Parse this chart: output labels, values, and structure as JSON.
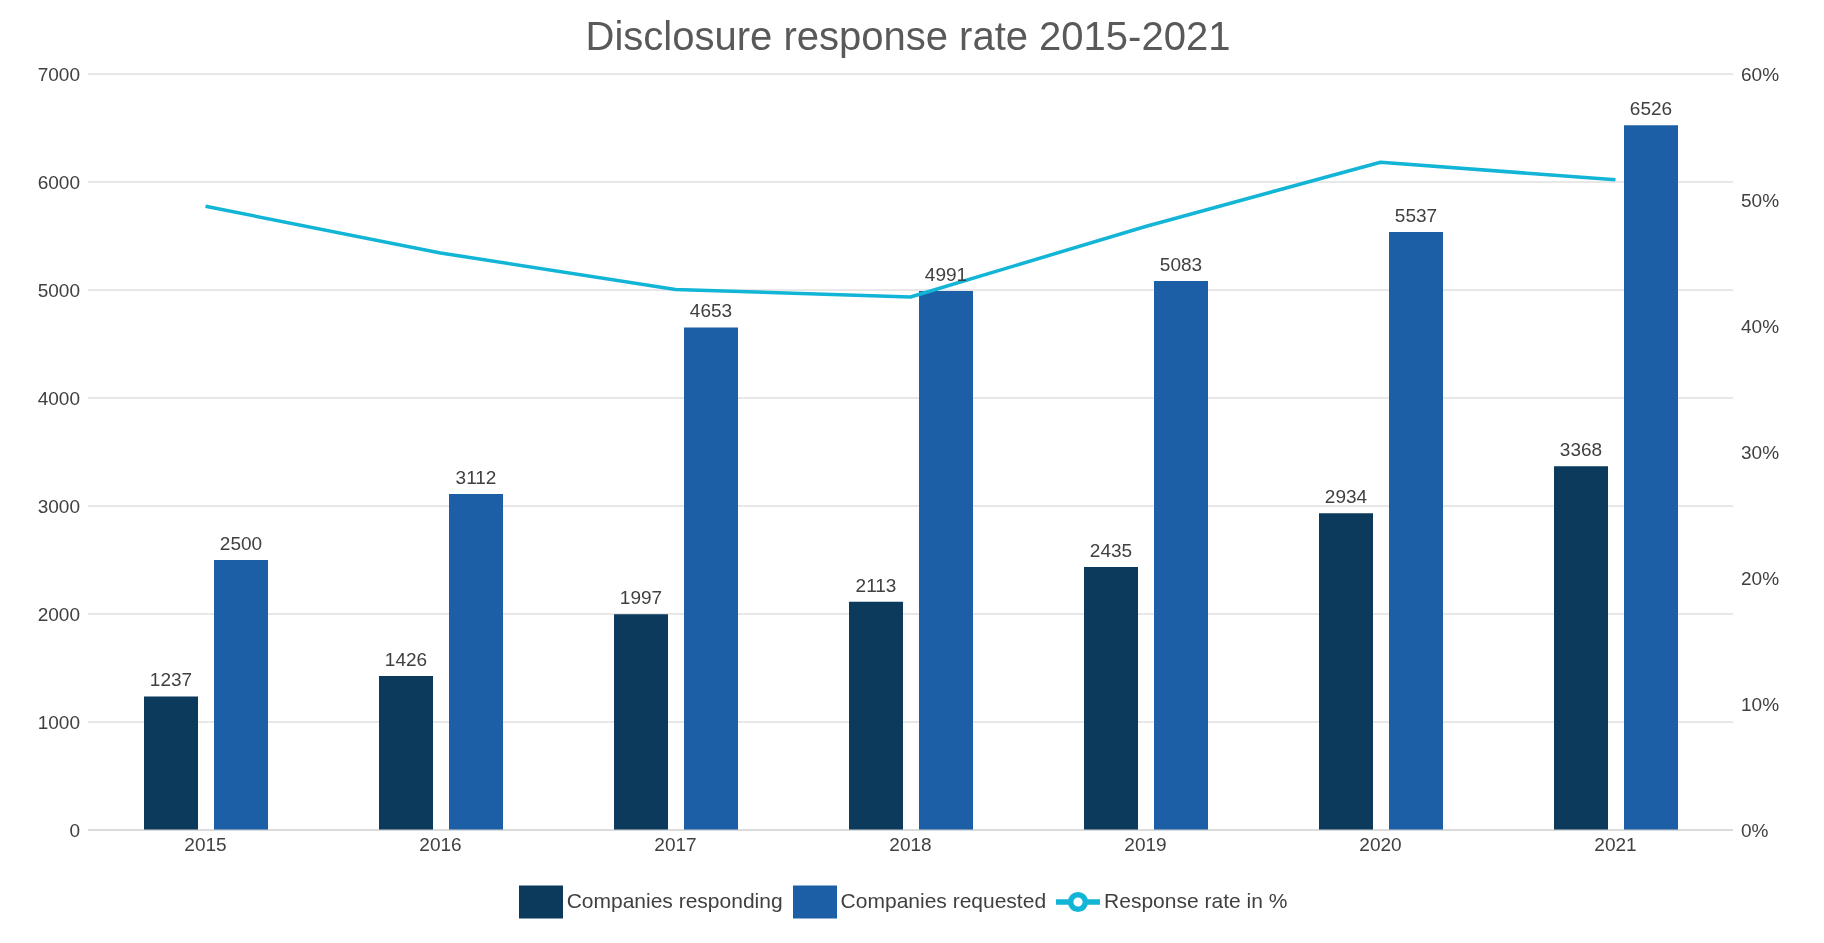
{
  "chart_data": {
    "type": "bar",
    "title": "Disclosure response rate 2015-2021",
    "categories": [
      "2015",
      "2016",
      "2017",
      "2018",
      "2019",
      "2020",
      "2021"
    ],
    "series": [
      {
        "name": "Companies responding",
        "color": "#0b3a5c",
        "values": [
          1237,
          1426,
          1997,
          2113,
          2435,
          2934,
          3368
        ],
        "value_labels": [
          "1237",
          "1426",
          "1997",
          "2113",
          "2435",
          "2934",
          "3368"
        ]
      },
      {
        "name": "Companies requested",
        "color": "#1c5fa6",
        "values": [
          2500,
          3112,
          4653,
          4991,
          5083,
          5537,
          6526
        ],
        "value_labels": [
          "2500",
          "3112",
          "4653",
          "4991",
          "5083",
          "5537",
          "6526"
        ]
      },
      {
        "name": "Response rate in %",
        "type": "line",
        "axis": "y2",
        "color": "#12b5d6",
        "values": [
          49.5,
          45.8,
          42.9,
          42.3,
          47.9,
          53.0,
          51.6
        ]
      }
    ],
    "ylim": [
      0,
      7000
    ],
    "yticks": [
      0,
      1000,
      2000,
      3000,
      4000,
      5000,
      6000,
      7000
    ],
    "y2lim": [
      0,
      60
    ],
    "y2ticks": [
      {
        "value": 0,
        "label": "0%"
      },
      {
        "value": 10,
        "label": "10%"
      },
      {
        "value": 20,
        "label": "20%"
      },
      {
        "value": 30,
        "label": "30%"
      },
      {
        "value": 40,
        "label": "40%"
      },
      {
        "value": 50,
        "label": "50%"
      },
      {
        "value": 60,
        "label": "60%"
      }
    ],
    "grid": "y",
    "legend": "bottom",
    "marker": "none",
    "line_style": "solid"
  }
}
